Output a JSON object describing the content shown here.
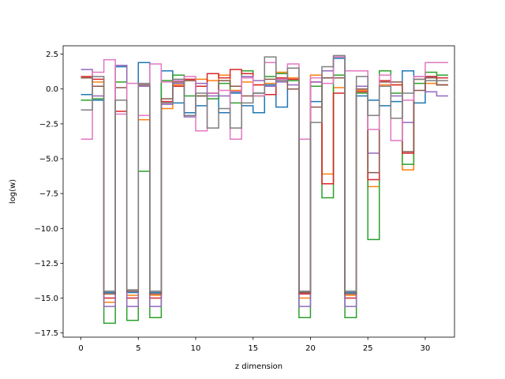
{
  "chart_data": {
    "type": "line",
    "step": "post",
    "xlabel": "z dimension",
    "ylabel": "log(w)",
    "xlim": [
      -1.55,
      32.55
    ],
    "ylim": [
      -17.8,
      3.1
    ],
    "xticks": [
      0,
      5,
      10,
      15,
      20,
      25,
      30
    ],
    "yticks": [
      2.5,
      0.0,
      -2.5,
      -5.0,
      -7.5,
      -10.0,
      -12.5,
      -15.0,
      -17.5
    ],
    "ytick_labels": [
      "2.5",
      "0.0",
      "−2.5",
      "−5.0",
      "−7.5",
      "−10.0",
      "−12.5",
      "−15.0",
      "−17.5"
    ],
    "series": [
      {
        "color": "#1f77b4",
        "values": [
          -0.4,
          -0.8,
          -14.6,
          1.6,
          -14.6,
          1.9,
          -14.6,
          1.3,
          -1.0,
          -1.7,
          -1.2,
          -0.3,
          -1.7,
          -0.3,
          -1.2,
          -1.7,
          0.3,
          -1.3,
          0.0,
          -14.6,
          -0.9,
          0.8,
          2.2,
          -14.6,
          -0.5,
          -0.8,
          -1.2,
          -0.9,
          1.3,
          -1.0,
          0.9,
          0.3
        ]
      },
      {
        "color": "#ff7f0e",
        "values": [
          0.8,
          0.5,
          -15.3,
          1.7,
          -14.8,
          -2.2,
          -14.8,
          -1.4,
          0.3,
          0.6,
          0.7,
          0.6,
          1.0,
          -0.1,
          0.5,
          0.3,
          0.4,
          1.2,
          0.8,
          -15.0,
          1.0,
          -6.1,
          0.1,
          -14.8,
          -0.1,
          -7.0,
          0.3,
          0.3,
          -5.8,
          0.7,
          0.4,
          0.3
        ]
      },
      {
        "color": "#2ca02c",
        "values": [
          -0.8,
          -0.7,
          -16.8,
          0.5,
          -16.6,
          -5.9,
          -16.4,
          0.6,
          1.0,
          -0.5,
          -0.5,
          -0.7,
          0.4,
          -1.0,
          1.3,
          -0.5,
          0.9,
          1.1,
          0.6,
          -16.4,
          0.2,
          -7.8,
          1.0,
          -16.4,
          -0.3,
          -10.8,
          1.3,
          -0.3,
          -5.4,
          0.4,
          1.2,
          1.0
        ]
      },
      {
        "color": "#d62728",
        "values": [
          0.9,
          0.7,
          -15.0,
          -1.6,
          -15.0,
          -1.9,
          -15.0,
          -0.9,
          0.2,
          0.7,
          0.2,
          1.1,
          0.8,
          1.4,
          1.1,
          0.3,
          -0.4,
          0.8,
          0.7,
          -14.7,
          0.5,
          -6.8,
          -0.3,
          -15.0,
          -0.2,
          -6.5,
          0.6,
          0.3,
          -4.6,
          0.7,
          0.9,
          0.8
        ]
      },
      {
        "color": "#9467bd",
        "values": [
          1.4,
          -0.5,
          -15.6,
          1.7,
          -15.6,
          0.2,
          -15.6,
          -1.1,
          0.4,
          -2.0,
          0.4,
          -0.5,
          -0.5,
          -0.2,
          0.9,
          0.6,
          0.2,
          0.5,
          0.3,
          -15.6,
          0.5,
          1.3,
          2.3,
          -15.6,
          0.2,
          -4.6,
          0.2,
          -0.5,
          -2.4,
          0.9,
          -0.2,
          -0.5
        ]
      },
      {
        "color": "#8c564b",
        "values": [
          0.8,
          0.2,
          -14.7,
          0.1,
          -14.5,
          0.3,
          -14.7,
          -0.7,
          0.5,
          0.6,
          -0.5,
          -0.3,
          0.6,
          0.2,
          -0.5,
          -0.3,
          0.7,
          0.7,
          0.0,
          -14.6,
          -1.3,
          0.8,
          0.8,
          -14.7,
          0.0,
          -6.0,
          0.5,
          0.5,
          -4.5,
          -0.1,
          0.8,
          0.3
        ]
      },
      {
        "color": "#e377c2",
        "values": [
          -3.6,
          1.2,
          2.1,
          -1.8,
          0.4,
          -1.9,
          1.8,
          0.5,
          0.6,
          0.9,
          -3.0,
          -0.3,
          -0.1,
          -3.6,
          0.8,
          -0.5,
          1.9,
          0.7,
          1.8,
          -3.6,
          0.8,
          0.4,
          2.3,
          1.3,
          1.3,
          -2.9,
          1.0,
          -3.7,
          -0.8,
          0.9,
          1.9,
          1.9
        ]
      },
      {
        "color": "#7f7f7f",
        "values": [
          -1.5,
          0.9,
          -14.5,
          -0.8,
          -14.4,
          0.4,
          -14.5,
          -1.0,
          0.7,
          -1.9,
          -0.3,
          -2.8,
          -1.4,
          -2.8,
          -1.0,
          -0.3,
          2.3,
          0.6,
          1.5,
          -14.5,
          -2.4,
          1.6,
          2.4,
          -14.5,
          0.9,
          -1.9,
          0.2,
          -2.1,
          -0.3,
          0.7,
          0.6,
          0.6
        ]
      }
    ]
  }
}
